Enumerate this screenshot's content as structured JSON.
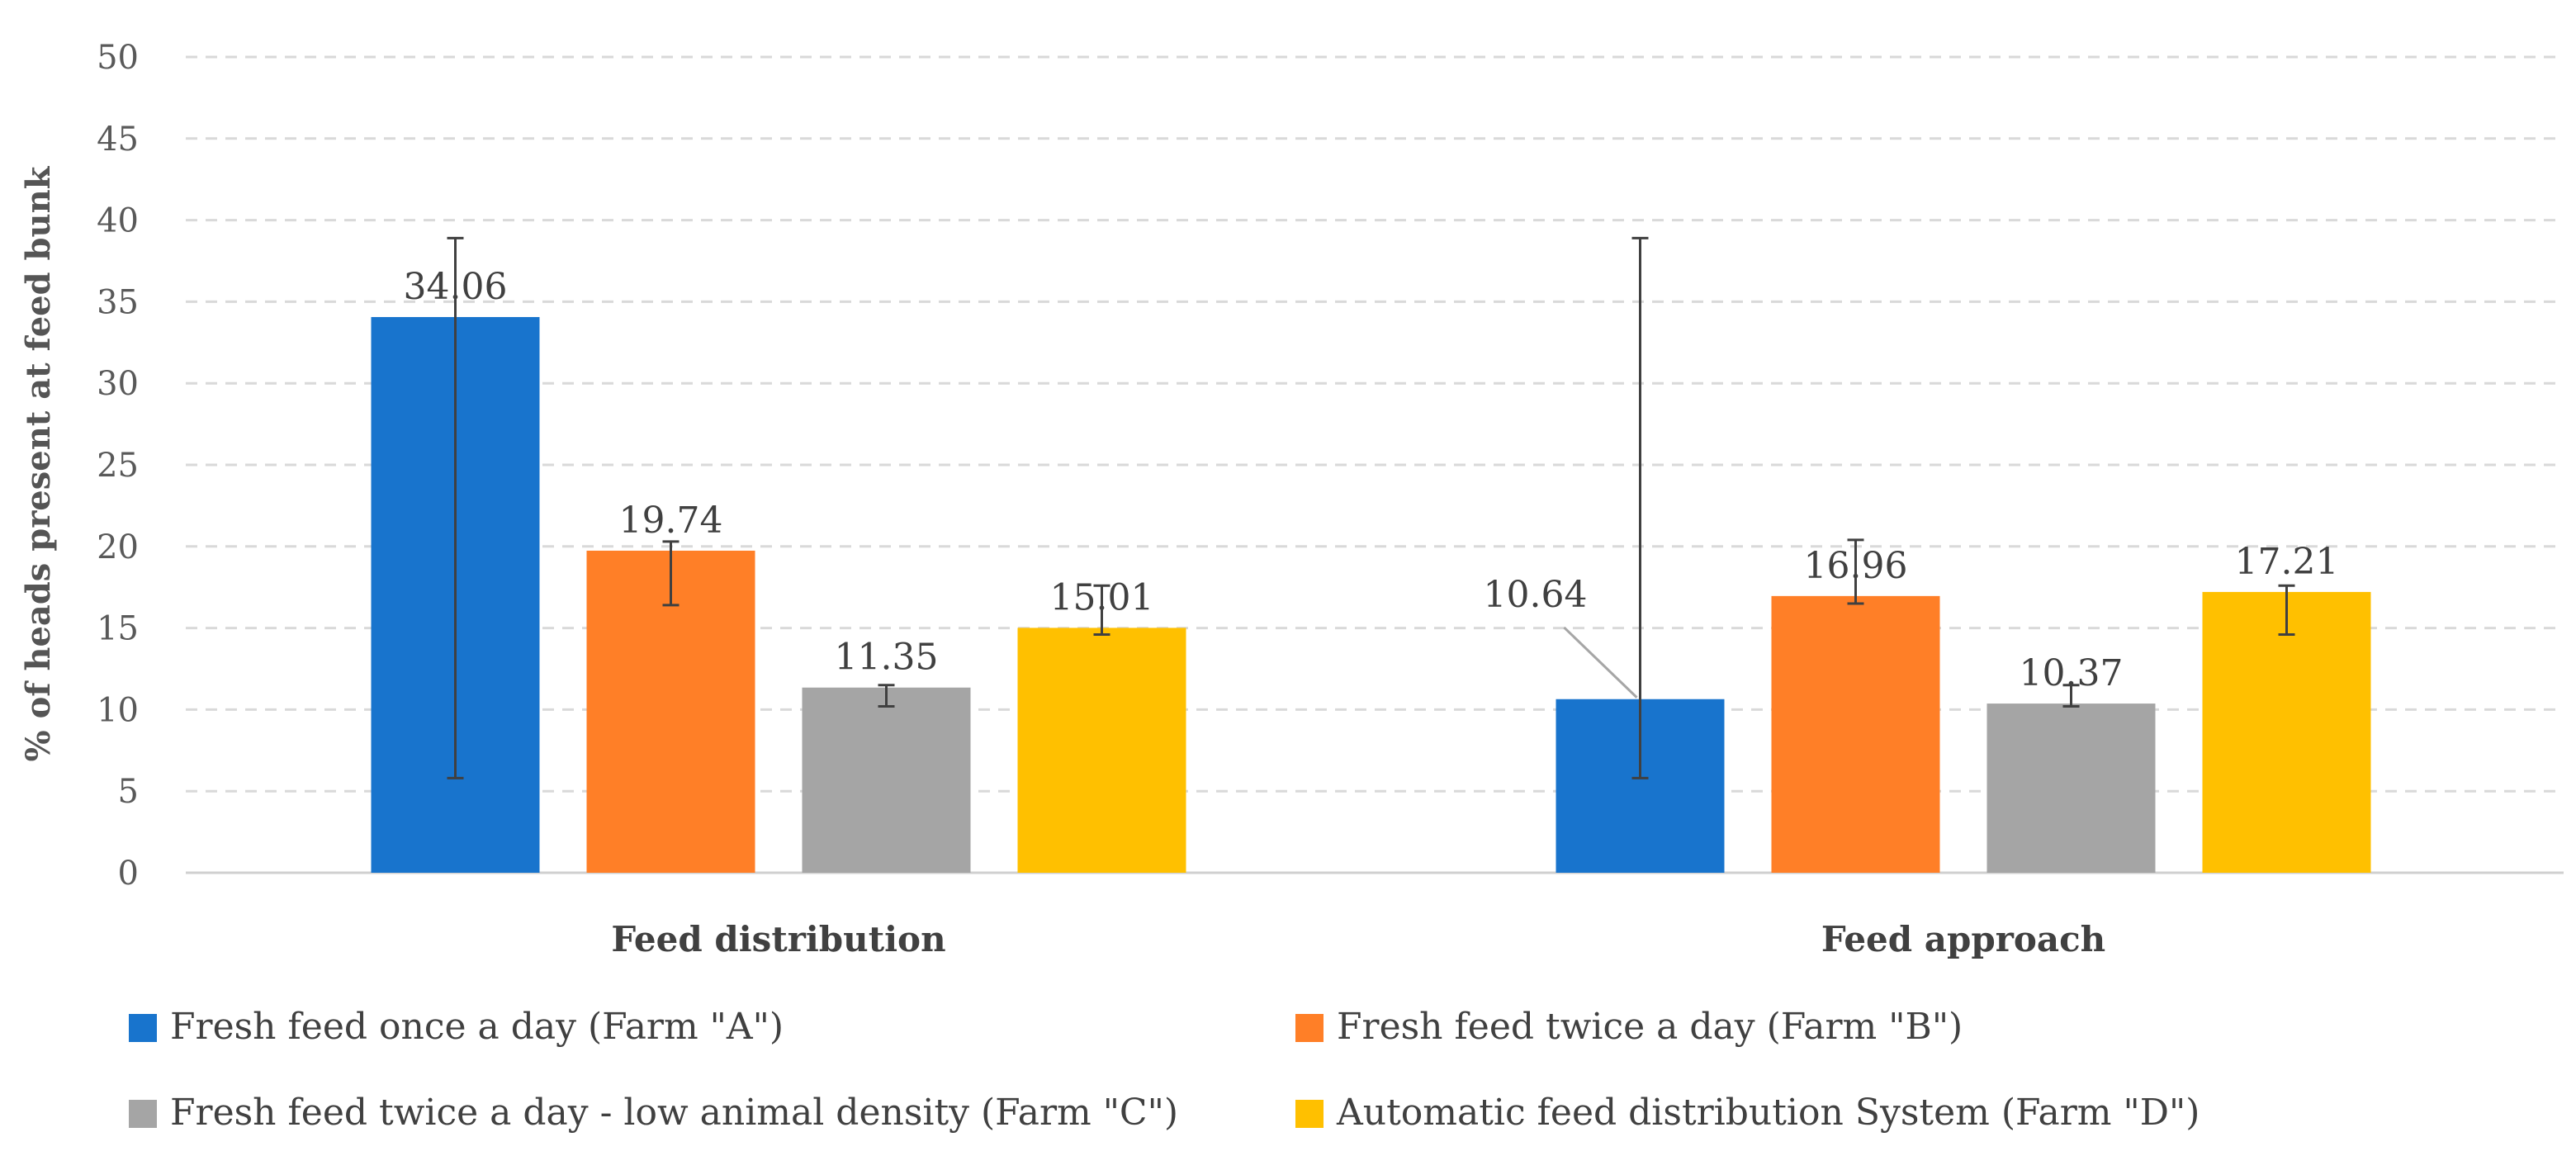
{
  "chart_data": {
    "type": "bar",
    "title": "",
    "xlabel": "",
    "ylabel": "% of heads present at feed bunk",
    "ylim": [
      0,
      50
    ],
    "yticks": [
      0,
      5,
      10,
      15,
      20,
      25,
      30,
      35,
      40,
      45,
      50
    ],
    "grid": true,
    "legend_position": "bottom",
    "categories": [
      "Feed distribution",
      "Feed approach"
    ],
    "series": [
      {
        "name": "Fresh feed once a day (Farm \"A\")",
        "color": "#1874CD",
        "values": [
          34.06,
          10.64
        ],
        "labels": [
          "34.06",
          "10.64"
        ],
        "error_low": [
          5.8,
          5.8
        ],
        "error_high": [
          38.9,
          38.9
        ]
      },
      {
        "name": "Fresh feed twice a day (Farm \"B\")",
        "color": "#FF7F27",
        "values": [
          19.74,
          16.96
        ],
        "labels": [
          "19.74",
          "16.96"
        ],
        "error_low": [
          16.4,
          16.5
        ],
        "error_high": [
          20.3,
          20.4
        ]
      },
      {
        "name": "Fresh feed twice a day - low animal density (Farm \"C\")",
        "color": "#A5A5A5",
        "values": [
          11.35,
          10.37
        ],
        "labels": [
          "11.35",
          "10.37"
        ],
        "error_low": [
          10.2,
          10.2
        ],
        "error_high": [
          11.5,
          11.5
        ]
      },
      {
        "name": "Automatic feed distribution System (Farm \"D\")",
        "color": "#FFC000",
        "values": [
          15.01,
          17.21
        ],
        "labels": [
          "15.01",
          "17.21"
        ],
        "error_low": [
          14.6,
          14.6
        ],
        "error_high": [
          17.6,
          17.6
        ]
      }
    ]
  }
}
